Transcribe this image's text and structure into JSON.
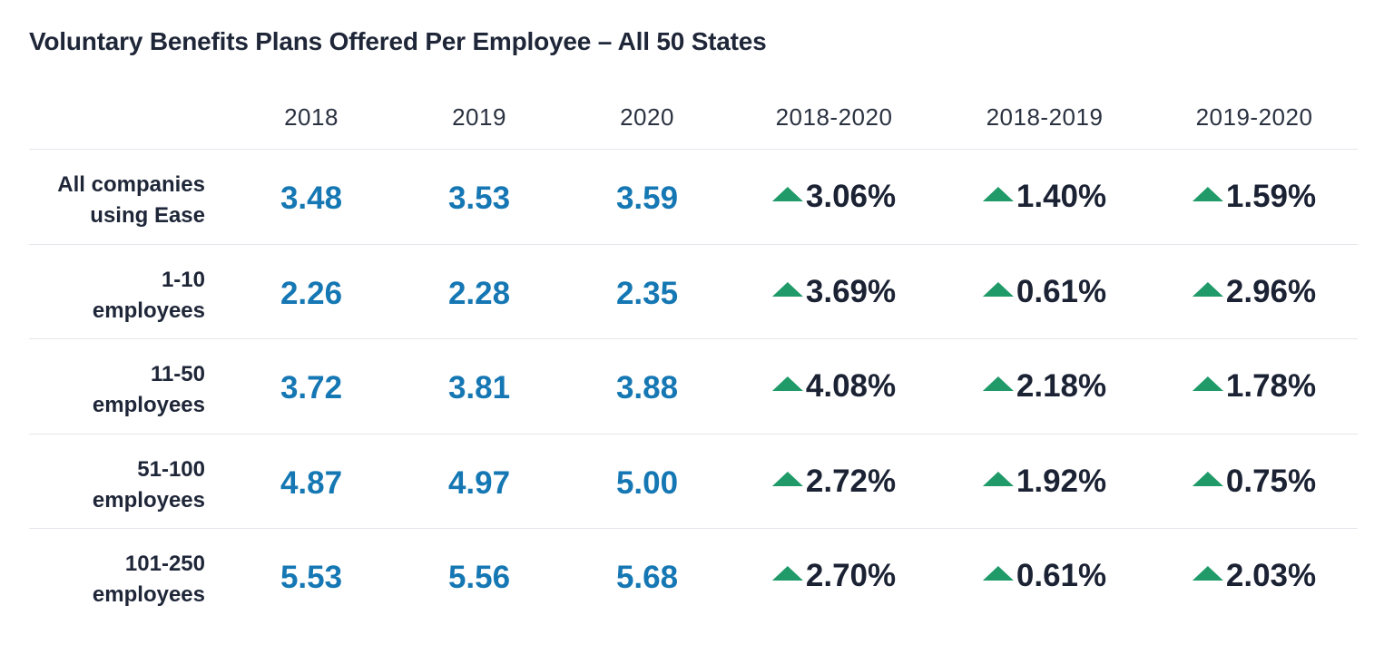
{
  "title": "Voluntary Benefits Plans Offered Per Employee – All 50 States",
  "colors": {
    "value_blue": "#1577b3",
    "up_arrow_green": "#1f9a68",
    "text_dark": "#1b2233",
    "divider": "#e3e6ea"
  },
  "icons": {
    "change_indicator": "up-triangle-icon"
  },
  "chart_data": {
    "type": "table",
    "title": "Voluntary Benefits Plans Offered Per Employee – All 50 States",
    "columns": [
      "2018",
      "2019",
      "2020",
      "2018-2020",
      "2018-2019",
      "2019-2020"
    ],
    "rows": [
      {
        "label_line1": "All companies",
        "label_line2": "using Ease",
        "values": [
          "3.48",
          "3.53",
          "3.59"
        ],
        "changes": [
          "3.06%",
          "1.40%",
          "1.59%"
        ]
      },
      {
        "label_line1": "1-10",
        "label_line2": "employees",
        "values": [
          "2.26",
          "2.28",
          "2.35"
        ],
        "changes": [
          "3.69%",
          "0.61%",
          "2.96%"
        ]
      },
      {
        "label_line1": "11-50",
        "label_line2": "employees",
        "values": [
          "3.72",
          "3.81",
          "3.88"
        ],
        "changes": [
          "4.08%",
          "2.18%",
          "1.78%"
        ]
      },
      {
        "label_line1": "51-100",
        "label_line2": "employees",
        "values": [
          "4.87",
          "4.97",
          "5.00"
        ],
        "changes": [
          "2.72%",
          "1.92%",
          "0.75%"
        ]
      },
      {
        "label_line1": "101-250",
        "label_line2": "employees",
        "values": [
          "5.53",
          "5.56",
          "5.68"
        ],
        "changes": [
          "2.70%",
          "0.61%",
          "2.03%"
        ]
      }
    ]
  }
}
